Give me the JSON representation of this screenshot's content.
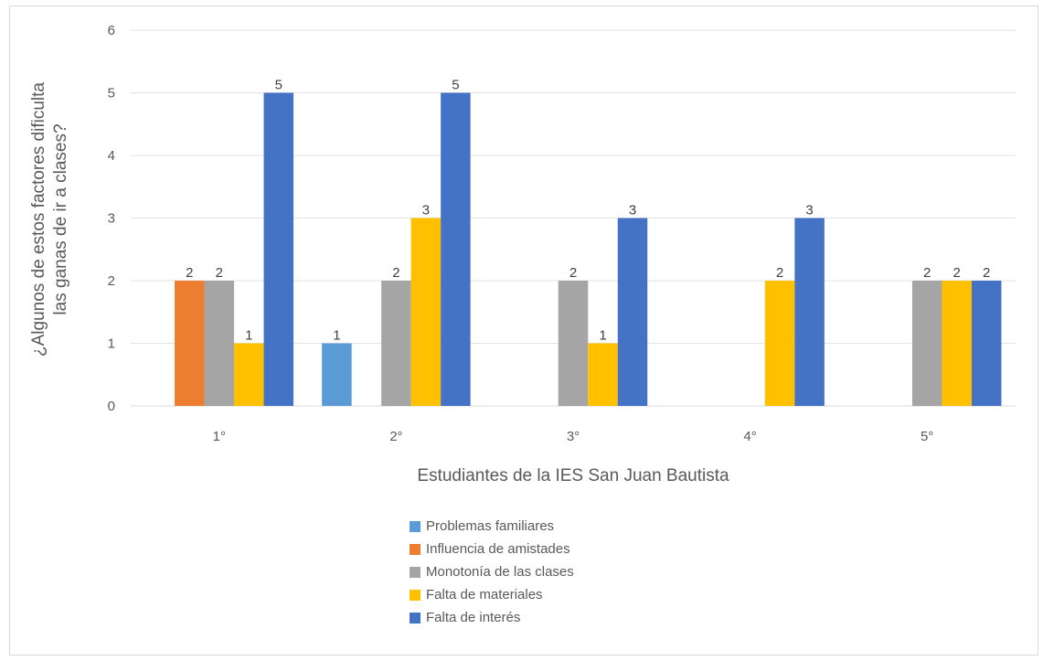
{
  "chart_data": {
    "type": "bar",
    "categories": [
      "1°",
      "2°",
      "3°",
      "4°",
      "5°"
    ],
    "series": [
      {
        "name": "Problemas familiares",
        "color": "#5b9bd5",
        "values": [
          0,
          1,
          0,
          0,
          0
        ]
      },
      {
        "name": "Influencia de amistades",
        "color": "#ed7d31",
        "values": [
          2,
          0,
          0,
          0,
          0
        ]
      },
      {
        "name": "Monotonía de las clases",
        "color": "#a5a5a5",
        "values": [
          2,
          2,
          2,
          0,
          2
        ]
      },
      {
        "name": "Falta de materiales",
        "color": "#ffc000",
        "values": [
          1,
          3,
          1,
          2,
          2
        ]
      },
      {
        "name": "Falta de interés",
        "color": "#4472c4",
        "values": [
          5,
          5,
          3,
          3,
          2
        ]
      }
    ],
    "title": "",
    "xlabel": "Estudiantes de la IES San Juan Bautista",
    "ylabel": "¿Algunos de estos factores dificulta las ganas de ir a clases?",
    "ylim": [
      0,
      6
    ],
    "yticks": [
      0,
      1,
      2,
      3,
      4,
      5,
      6
    ],
    "grid": true,
    "legend_position": "bottom"
  }
}
